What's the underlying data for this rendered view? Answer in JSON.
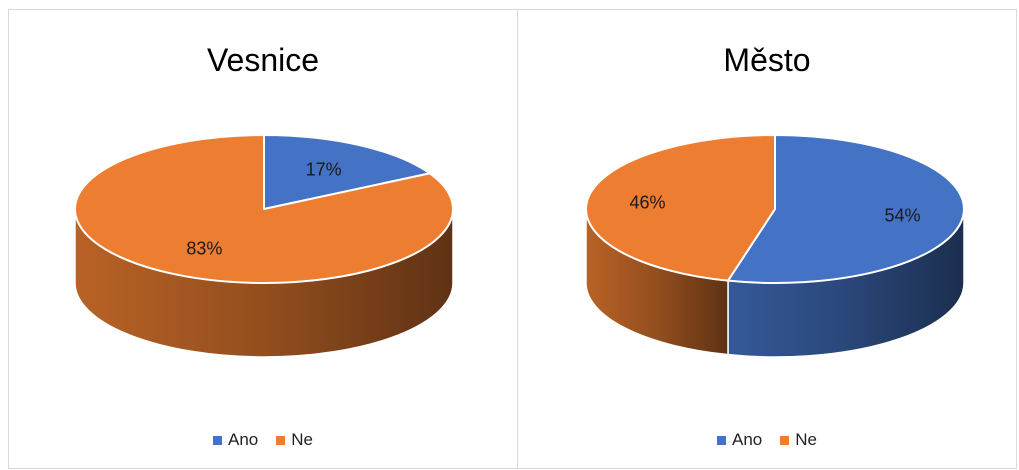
{
  "colors": {
    "ano": "#4472C4",
    "ne": "#ED7D31"
  },
  "chart_data": [
    {
      "type": "pie",
      "title": "Vesnice",
      "categories": [
        "Ano",
        "Ne"
      ],
      "values": [
        17,
        83
      ],
      "data_labels": [
        "17%",
        "83%"
      ],
      "legend_position": "bottom"
    },
    {
      "type": "pie",
      "title": "Město",
      "categories": [
        "Ano",
        "Ne"
      ],
      "values": [
        54,
        46
      ],
      "data_labels": [
        "54%",
        "46%"
      ],
      "legend_position": "bottom"
    }
  ],
  "legend": {
    "ano_label": "Ano",
    "ne_label": "Ne"
  }
}
